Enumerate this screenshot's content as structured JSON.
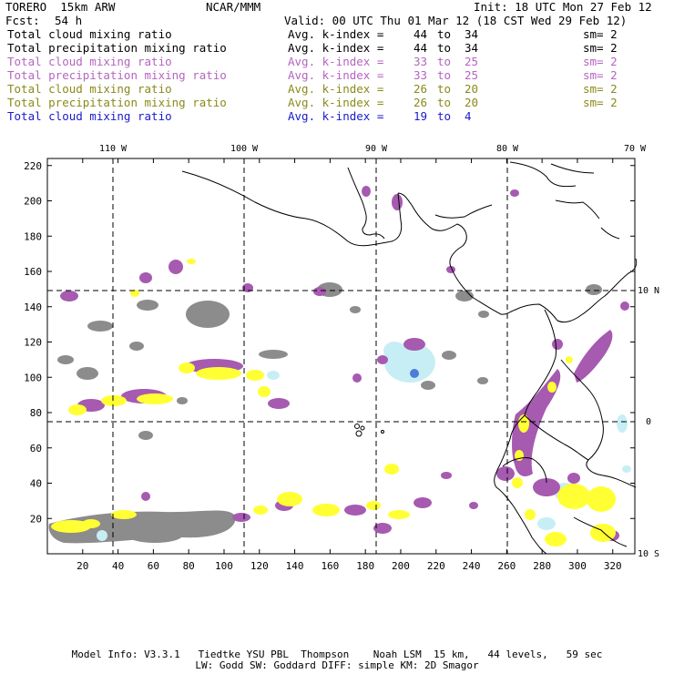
{
  "header": {
    "model_name": "TORERO  15km ARW",
    "center": "NCAR/MMM",
    "init": "Init: 18 UTC Mon 27 Feb 12",
    "fcst_label": "Fcst:",
    "fcst_value": "54 h",
    "valid": "Valid: 00 UTC Thu 01 Mar 12 (18 CST Wed 29 Feb 12)"
  },
  "legend": [
    {
      "name": "Total cloud mixing ratio",
      "kidx_label": "Avg. k-index =",
      "from": "44",
      "to_word": "to",
      "to": "34",
      "sm": "sm= 2",
      "color": "#000000"
    },
    {
      "name": "Total precipitation mixing ratio",
      "kidx_label": "Avg. k-index =",
      "from": "44",
      "to_word": "to",
      "to": "34",
      "sm": "sm= 2",
      "color": "#000000"
    },
    {
      "name": "Total cloud mixing ratio",
      "kidx_label": "Avg. k-index =",
      "from": "33",
      "to_word": "to",
      "to": "25",
      "sm": "sm= 2",
      "color": "#b565c0"
    },
    {
      "name": "Total precipitation mixing ratio",
      "kidx_label": "Avg. k-index =",
      "from": "33",
      "to_word": "to",
      "to": "25",
      "sm": "sm= 2",
      "color": "#b565c0"
    },
    {
      "name": "Total cloud mixing ratio",
      "kidx_label": "Avg. k-index =",
      "from": "26",
      "to_word": "to",
      "to": "20",
      "sm": "sm= 2",
      "color": "#8a8a1a"
    },
    {
      "name": "Total precipitation mixing ratio",
      "kidx_label": "Avg. k-index =",
      "from": "26",
      "to_word": "to",
      "to": "20",
      "sm": "sm= 2",
      "color": "#8a8a1a"
    },
    {
      "name": "Total cloud mixing ratio",
      "kidx_label": "Avg. k-index =",
      "from": "19",
      "to_word": "to",
      "to": "4",
      "sm": "",
      "color": "#1a1acc"
    }
  ],
  "map": {
    "lon_labels": [
      "110 W",
      "100 W",
      "90 W",
      "80 W",
      "70 W"
    ],
    "lat_labels": [
      "10 N",
      "0",
      "10 S"
    ],
    "x_ticks": [
      "20",
      "40",
      "60",
      "80",
      "100",
      "120",
      "140",
      "160",
      "180",
      "200",
      "220",
      "240",
      "260",
      "280",
      "300",
      "320"
    ],
    "y_ticks": [
      "220",
      "200",
      "180",
      "160",
      "140",
      "120",
      "100",
      "80",
      "60",
      "40",
      "20"
    ],
    "colors": {
      "gray": "#8c8c8c",
      "purple": "#a65ab0",
      "yellow": "#ffff33",
      "lightblue": "#c8eef5",
      "blue": "#4a7ed8",
      "coast": "#000000",
      "grid": "#000000"
    }
  },
  "footer": {
    "line1": "Model Info: V3.3.1   Tiedtke YSU PBL  Thompson    Noah LSM  15 km,   44 levels,   59 sec",
    "line2": "LW: Godd SW: Goddard DIFF: simple KM: 2D Smagor"
  }
}
